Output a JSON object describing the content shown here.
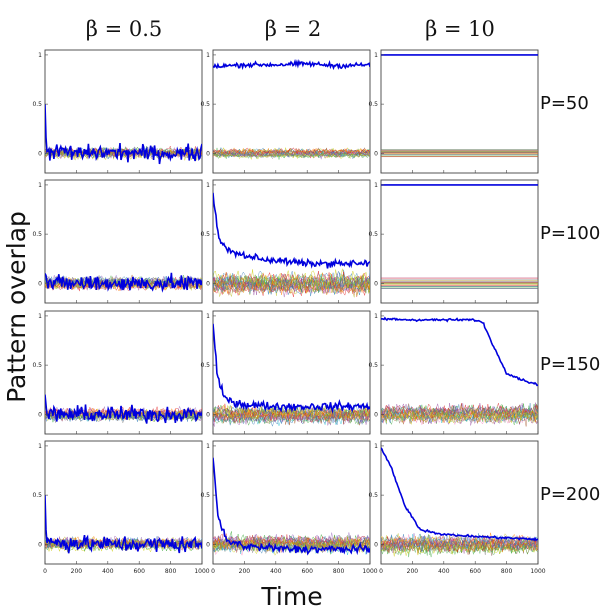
{
  "chart_data": {
    "type": "line",
    "title": "",
    "xlabel": "Time",
    "ylabel": "Pattern overlap",
    "columns": [
      "β = 0.5",
      "β = 2",
      "β = 10"
    ],
    "rows": [
      "P=50",
      "P=100",
      "P=150",
      "P=200"
    ],
    "xlim": [
      0,
      1000
    ],
    "ylim": [
      -0.2,
      1.05
    ],
    "x_ticks": [
      "0",
      "200",
      "400",
      "600",
      "800",
      "1000"
    ],
    "y_ticks": [
      "0",
      "0.5",
      "1"
    ],
    "grid": false,
    "legend": "none",
    "highlight_color": "#0000dd",
    "background_traces": "many thin multicolored lines (other patterns) fluctuating near 0",
    "panels": [
      {
        "row": "P=50",
        "column": "β = 0.5",
        "highlight": [
          [
            0,
            0.5
          ],
          [
            10,
            0.03
          ],
          [
            200,
            0.0
          ],
          [
            400,
            0.01
          ],
          [
            600,
            0.0
          ],
          [
            800,
            0.0
          ],
          [
            1000,
            0.0
          ]
        ],
        "noise": 0.07,
        "spread": 0.06
      },
      {
        "row": "P=50",
        "column": "β = 2",
        "highlight": [
          [
            0,
            0.88
          ],
          [
            200,
            0.9
          ],
          [
            400,
            0.9
          ],
          [
            600,
            0.91
          ],
          [
            800,
            0.89
          ],
          [
            1000,
            0.9
          ]
        ],
        "noise": 0.02,
        "spread": 0.05
      },
      {
        "row": "P=50",
        "column": "β = 10",
        "highlight": [
          [
            0,
            1.0
          ],
          [
            1000,
            1.0
          ]
        ],
        "noise": 0.0,
        "spread": 0.05
      },
      {
        "row": "P=100",
        "column": "β = 0.5",
        "highlight": [
          [
            0,
            0.1
          ],
          [
            10,
            0.0
          ],
          [
            200,
            0.0
          ],
          [
            600,
            0.0
          ],
          [
            1000,
            0.0
          ]
        ],
        "noise": 0.07,
        "spread": 0.07
      },
      {
        "row": "P=100",
        "column": "β = 2",
        "highlight": [
          [
            0,
            0.92
          ],
          [
            30,
            0.5
          ],
          [
            80,
            0.35
          ],
          [
            150,
            0.3
          ],
          [
            300,
            0.25
          ],
          [
            600,
            0.2
          ],
          [
            1000,
            0.2
          ]
        ],
        "noise": 0.03,
        "spread": 0.12
      },
      {
        "row": "P=100",
        "column": "β = 10",
        "highlight": [
          [
            0,
            1.0
          ],
          [
            1000,
            1.0
          ]
        ],
        "noise": 0.0,
        "spread": 0.07
      },
      {
        "row": "P=150",
        "column": "β = 0.5",
        "highlight": [
          [
            0,
            0.2
          ],
          [
            10,
            0.0
          ],
          [
            400,
            0.0
          ],
          [
            1000,
            0.0
          ]
        ],
        "noise": 0.07,
        "spread": 0.07
      },
      {
        "row": "P=150",
        "column": "β = 2",
        "highlight": [
          [
            0,
            0.92
          ],
          [
            30,
            0.35
          ],
          [
            80,
            0.15
          ],
          [
            200,
            0.1
          ],
          [
            400,
            0.08
          ],
          [
            1000,
            0.08
          ]
        ],
        "noise": 0.035,
        "spread": 0.1
      },
      {
        "row": "P=150",
        "column": "β = 10",
        "highlight": [
          [
            0,
            0.97
          ],
          [
            200,
            0.96
          ],
          [
            400,
            0.96
          ],
          [
            600,
            0.96
          ],
          [
            650,
            0.93
          ],
          [
            720,
            0.68
          ],
          [
            800,
            0.42
          ],
          [
            900,
            0.35
          ],
          [
            1000,
            0.3
          ]
        ],
        "noise": 0.01,
        "spread": 0.1
      },
      {
        "row": "P=200",
        "column": "β = 0.5",
        "highlight": [
          [
            0,
            0.5
          ],
          [
            10,
            0.02
          ],
          [
            400,
            0.0
          ],
          [
            1000,
            0.0
          ]
        ],
        "noise": 0.07,
        "spread": 0.07
      },
      {
        "row": "P=200",
        "column": "β = 2",
        "highlight": [
          [
            0,
            0.88
          ],
          [
            30,
            0.3
          ],
          [
            80,
            0.05
          ],
          [
            200,
            -0.02
          ],
          [
            500,
            -0.05
          ],
          [
            1000,
            -0.05
          ]
        ],
        "noise": 0.035,
        "spread": 0.1
      },
      {
        "row": "P=200",
        "column": "β = 10",
        "highlight": [
          [
            0,
            0.98
          ],
          [
            60,
            0.8
          ],
          [
            150,
            0.4
          ],
          [
            250,
            0.15
          ],
          [
            400,
            0.1
          ],
          [
            600,
            0.08
          ],
          [
            1000,
            0.05
          ]
        ],
        "noise": 0.01,
        "spread": 0.1
      }
    ]
  }
}
